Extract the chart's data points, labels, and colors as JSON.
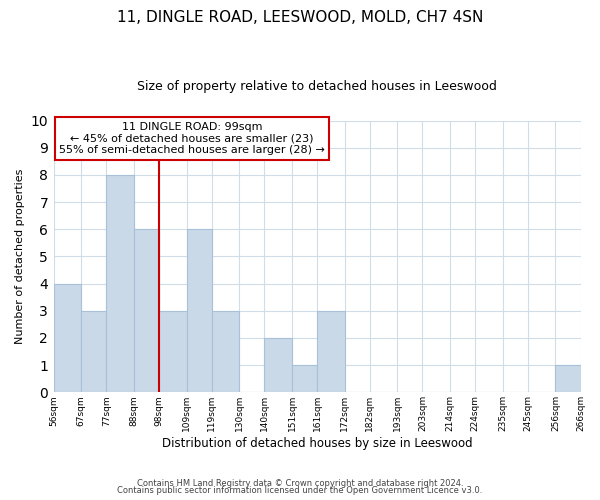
{
  "title": "11, DINGLE ROAD, LEESWOOD, MOLD, CH7 4SN",
  "subtitle": "Size of property relative to detached houses in Leeswood",
  "xlabel": "Distribution of detached houses by size in Leeswood",
  "ylabel": "Number of detached properties",
  "bin_labels": [
    "56sqm",
    "67sqm",
    "77sqm",
    "88sqm",
    "98sqm",
    "109sqm",
    "119sqm",
    "130sqm",
    "140sqm",
    "151sqm",
    "161sqm",
    "172sqm",
    "182sqm",
    "193sqm",
    "203sqm",
    "214sqm",
    "224sqm",
    "235sqm",
    "245sqm",
    "256sqm",
    "266sqm"
  ],
  "bin_edges": [
    56,
    67,
    77,
    88,
    98,
    109,
    119,
    130,
    140,
    151,
    161,
    172,
    182,
    193,
    203,
    214,
    224,
    235,
    245,
    256,
    266
  ],
  "bar_heights": [
    4,
    3,
    8,
    6,
    3,
    6,
    3,
    0,
    2,
    1,
    3,
    0,
    0,
    0,
    0,
    0,
    0,
    0,
    0,
    1
  ],
  "bar_color": "#c9d9e8",
  "bar_edgecolor": "#a8c0d8",
  "property_line_x": 98,
  "property_line_color": "#cc0000",
  "ylim": [
    0,
    10
  ],
  "yticks": [
    0,
    1,
    2,
    3,
    4,
    5,
    6,
    7,
    8,
    9,
    10
  ],
  "annotation_title": "11 DINGLE ROAD: 99sqm",
  "annotation_line1": "← 45% of detached houses are smaller (23)",
  "annotation_line2": "55% of semi-detached houses are larger (28) →",
  "annotation_box_color": "#ffffff",
  "annotation_box_edgecolor": "#cc0000",
  "footer_line1": "Contains HM Land Registry data © Crown copyright and database right 2024.",
  "footer_line2": "Contains public sector information licensed under the Open Government Licence v3.0.",
  "background_color": "#ffffff",
  "grid_color": "#d0dce8"
}
